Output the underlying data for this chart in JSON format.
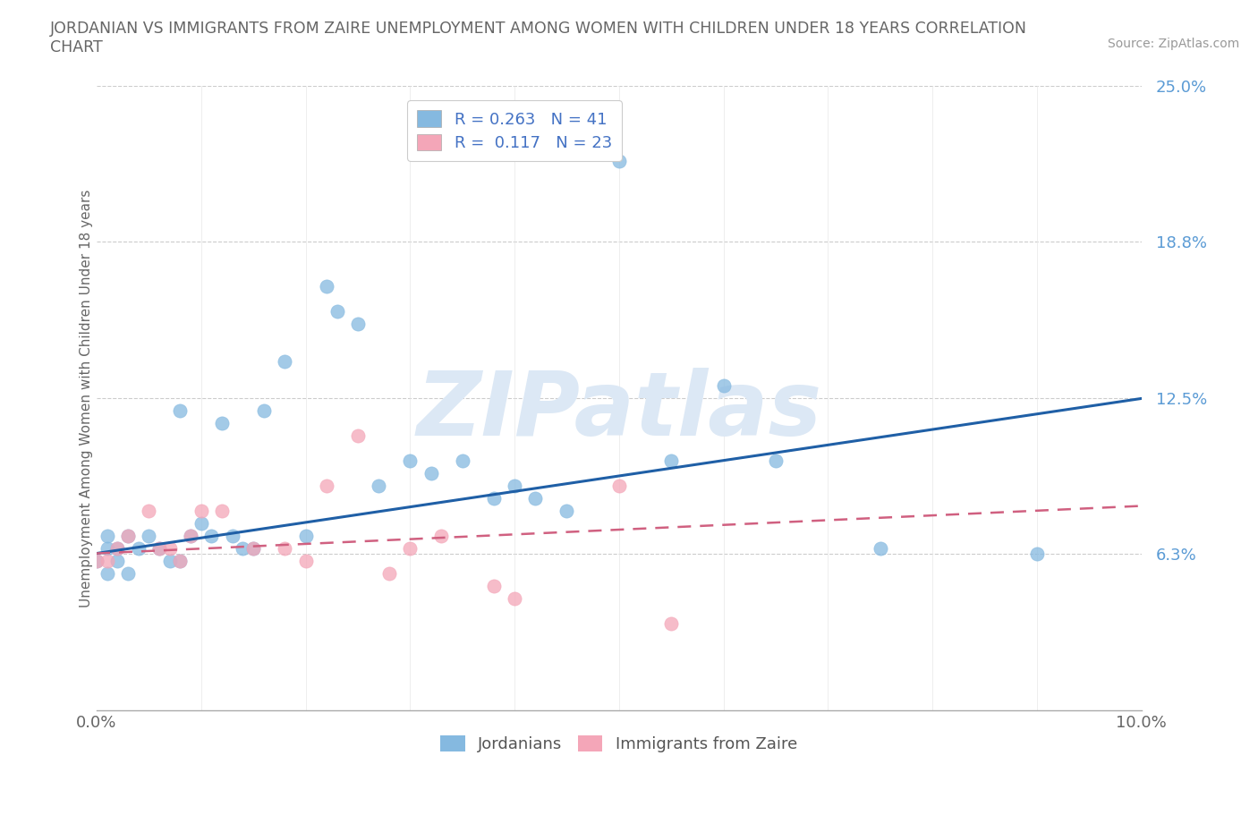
{
  "title": "JORDANIAN VS IMMIGRANTS FROM ZAIRE UNEMPLOYMENT AMONG WOMEN WITH CHILDREN UNDER 18 YEARS CORRELATION\nCHART",
  "source": "Source: ZipAtlas.com",
  "ylabel": "Unemployment Among Women with Children Under 18 years",
  "xlim": [
    0.0,
    0.1
  ],
  "ylim": [
    0.0,
    0.25
  ],
  "y_ticks": [
    0.063,
    0.125,
    0.188,
    0.25
  ],
  "y_tick_labels": [
    "6.3%",
    "12.5%",
    "18.8%",
    "25.0%"
  ],
  "watermark": "ZIPatlas",
  "legend1_label1": "R = 0.263   N = 41",
  "legend1_label2": "R =  0.117   N = 23",
  "jordanians_color": "#85b9e0",
  "zaire_color": "#f4a6b8",
  "trend_jordan_color": "#1f5fa6",
  "trend_zaire_color": "#d06080",
  "background_color": "#ffffff",
  "grid_color": "#cccccc",
  "title_color": "#666666",
  "watermark_color": "#dce8f5",
  "watermark_fontsize": 72,
  "jordanians_x": [
    0.0,
    0.001,
    0.001,
    0.001,
    0.002,
    0.002,
    0.003,
    0.003,
    0.004,
    0.005,
    0.006,
    0.007,
    0.008,
    0.008,
    0.009,
    0.01,
    0.011,
    0.012,
    0.013,
    0.014,
    0.015,
    0.016,
    0.018,
    0.02,
    0.022,
    0.023,
    0.025,
    0.027,
    0.03,
    0.032,
    0.035,
    0.038,
    0.04,
    0.042,
    0.045,
    0.05,
    0.055,
    0.06,
    0.065,
    0.075,
    0.09
  ],
  "jordanians_y": [
    0.06,
    0.055,
    0.065,
    0.07,
    0.06,
    0.065,
    0.055,
    0.07,
    0.065,
    0.07,
    0.065,
    0.06,
    0.06,
    0.12,
    0.07,
    0.075,
    0.07,
    0.115,
    0.07,
    0.065,
    0.065,
    0.12,
    0.14,
    0.07,
    0.17,
    0.16,
    0.155,
    0.09,
    0.1,
    0.095,
    0.1,
    0.085,
    0.09,
    0.085,
    0.08,
    0.22,
    0.1,
    0.13,
    0.1,
    0.065,
    0.063
  ],
  "zaire_x": [
    0.0,
    0.001,
    0.002,
    0.003,
    0.005,
    0.006,
    0.007,
    0.008,
    0.009,
    0.01,
    0.012,
    0.015,
    0.018,
    0.02,
    0.022,
    0.025,
    0.028,
    0.03,
    0.033,
    0.038,
    0.04,
    0.05,
    0.055
  ],
  "zaire_y": [
    0.06,
    0.06,
    0.065,
    0.07,
    0.08,
    0.065,
    0.065,
    0.06,
    0.07,
    0.08,
    0.08,
    0.065,
    0.065,
    0.06,
    0.09,
    0.11,
    0.055,
    0.065,
    0.07,
    0.05,
    0.045,
    0.09,
    0.035
  ],
  "trend_jordan_x0": 0.0,
  "trend_jordan_y0": 0.063,
  "trend_jordan_x1": 0.1,
  "trend_jordan_y1": 0.125,
  "trend_zaire_x0": 0.0,
  "trend_zaire_y0": 0.063,
  "trend_zaire_x1": 0.1,
  "trend_zaire_y1": 0.082
}
